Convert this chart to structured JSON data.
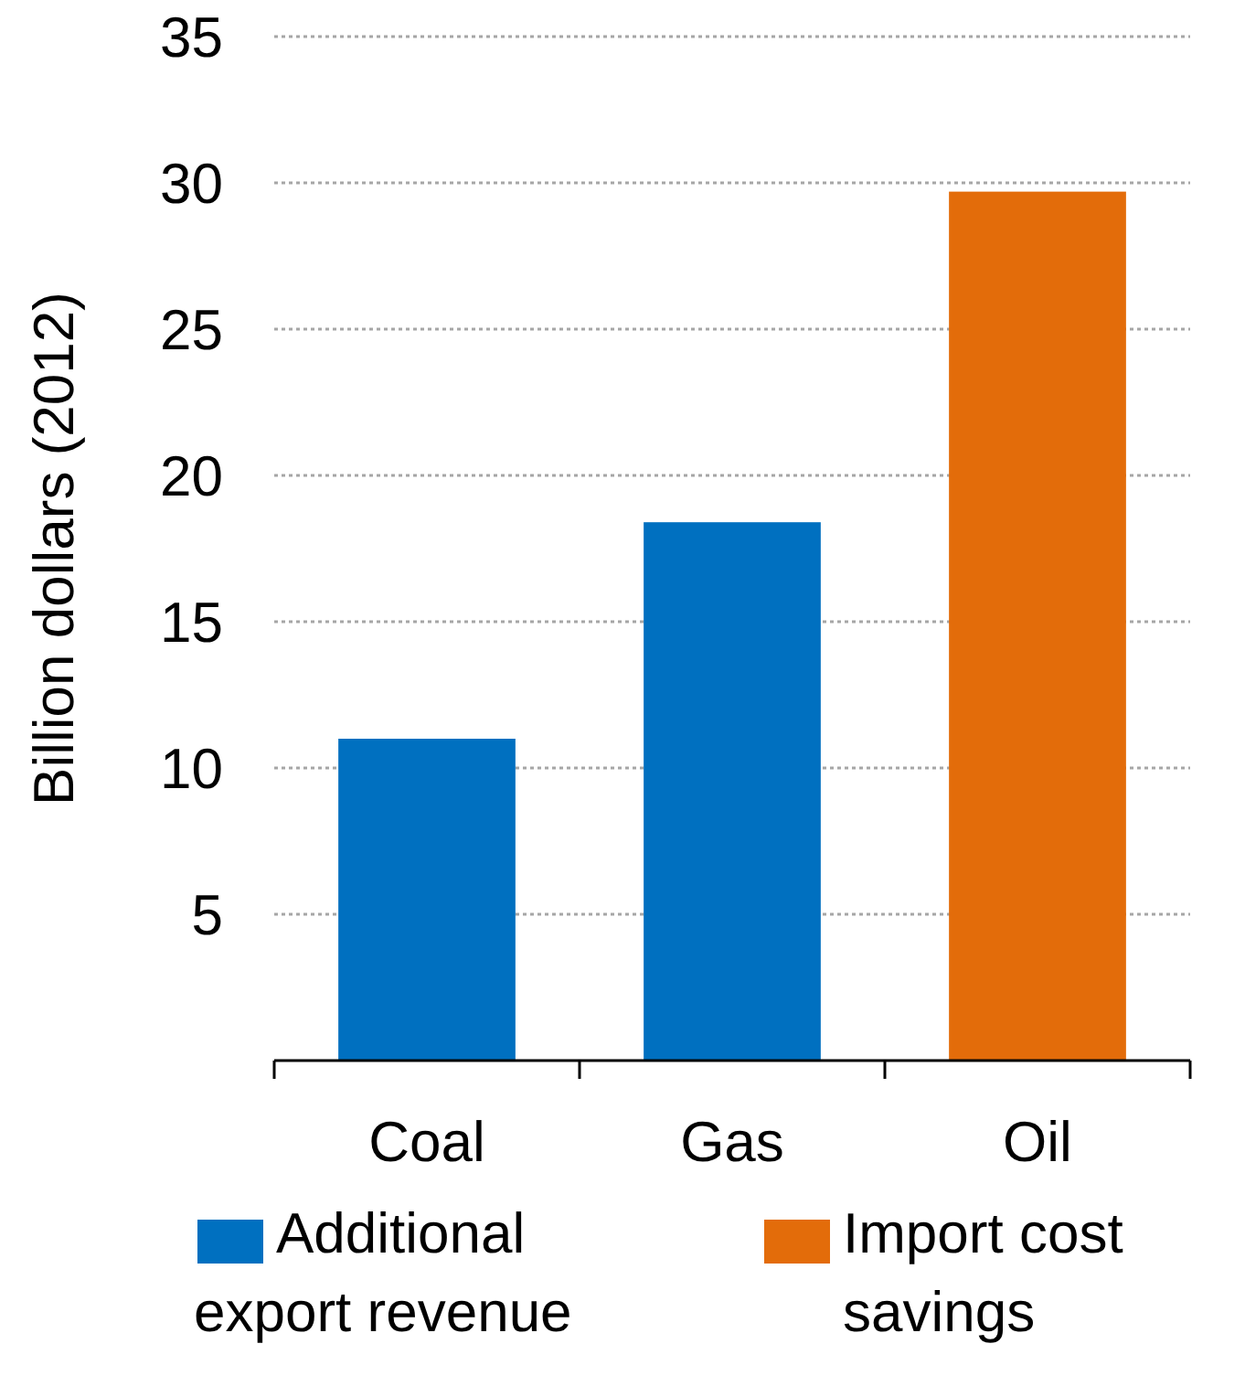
{
  "chart_data": {
    "type": "bar",
    "ylabel": "Billion dollars (2012)",
    "categories": [
      "Coal",
      "Gas",
      "Oil"
    ],
    "stacked": true,
    "series": [
      {
        "name": "Additional export revenue",
        "color": "#0070c0",
        "values": [
          11,
          18.4,
          null
        ]
      },
      {
        "name": "Import cost savings",
        "color": "#e36c0a",
        "values": [
          null,
          null,
          29.7
        ]
      }
    ],
    "ylim": [
      0,
      35
    ],
    "yticks": [
      5,
      10,
      15,
      20,
      25,
      30,
      35
    ],
    "grid": "y",
    "legend": "bottom"
  }
}
